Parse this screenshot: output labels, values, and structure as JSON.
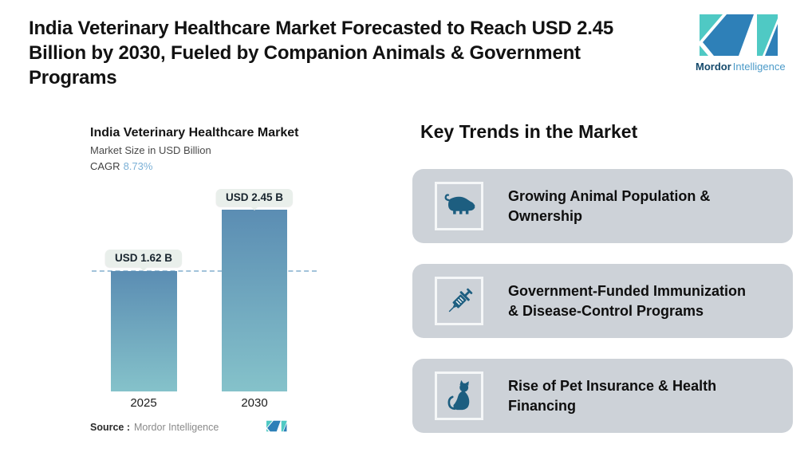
{
  "header": {
    "title_lines": [
      "India Veterinary Healthcare Market Forecasted to Reach USD 2.45",
      "Billion by 2030, Fueled by Companion Animals & Government",
      "Programs"
    ],
    "logo": {
      "brand_bold": "Mordor",
      "brand_light": "Intelligence"
    }
  },
  "chart": {
    "title": "India Veterinary Healthcare Market",
    "subtitle": "Market Size in USD Billion",
    "cagr_label": "CAGR",
    "cagr_value": "8.73%",
    "source_label": "Source :",
    "source_value": "Mordor Intelligence"
  },
  "chart_data": {
    "type": "bar",
    "title": "India Veterinary Healthcare Market",
    "ylabel": "Market Size in USD Billion",
    "cagr": "8.73%",
    "categories": [
      "2025",
      "2030"
    ],
    "values": [
      1.62,
      2.45
    ],
    "value_labels": [
      "USD 1.62 B",
      "USD 2.45 B"
    ],
    "ylim": [
      0,
      2.6
    ],
    "grid": false,
    "reference_line": {
      "y": 1.62,
      "style": "dashed",
      "color": "#a2c3da"
    },
    "bar_gradient_top": "#5b8db3",
    "bar_gradient_bottom": "#85c2ca"
  },
  "trends": {
    "heading": "Key Trends in the Market",
    "cards": [
      {
        "icon": "pig-icon",
        "line1": "Growing Animal Population &",
        "line2": "Ownership"
      },
      {
        "icon": "syringe-icon",
        "line1": "Government-Funded Immunization",
        "line2": "& Disease-Control Programs"
      },
      {
        "icon": "cat-icon",
        "line1": "Rise of Pet Insurance & Health",
        "line2": "Financing"
      }
    ]
  },
  "colors": {
    "card_background": "#cdd2d8",
    "icon_fill": "#1d5e80",
    "badge_background": "#e9efeb",
    "cagr_accent": "#7bb0d6",
    "logo_blue": "#2e80b8",
    "logo_teal": "#4fc9c4",
    "brand_dark": "#14496b",
    "brand_light": "#4a9ac8"
  }
}
